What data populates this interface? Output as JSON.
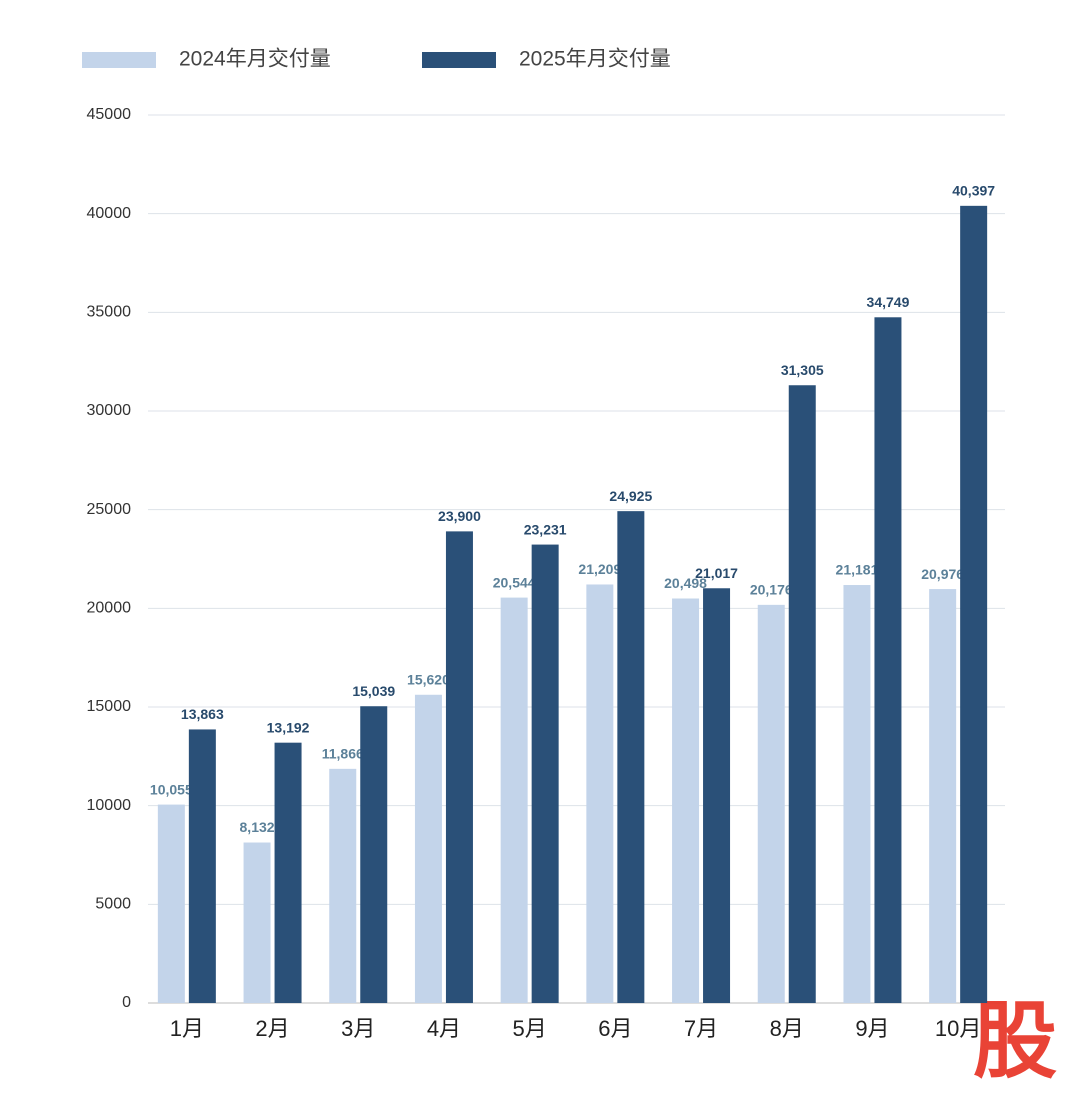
{
  "chart_data": {
    "type": "bar",
    "categories": [
      "1月",
      "2月",
      "3月",
      "4月",
      "5月",
      "6月",
      "7月",
      "8月",
      "9月",
      "10月"
    ],
    "series": [
      {
        "name": "2024年月交付量",
        "color": "#c3d4ea",
        "values": [
          10055,
          8132,
          11866,
          15620,
          20544,
          21209,
          20498,
          20176,
          21181,
          20976
        ],
        "value_labels": [
          "10,055",
          "8,132",
          "11,866",
          "15,620",
          "20,544",
          "21,209",
          "20,498",
          "20,176",
          "21,181",
          "20,976"
        ]
      },
      {
        "name": "2025年月交付量",
        "color": "#2a5078",
        "values": [
          13863,
          13192,
          15039,
          23900,
          23231,
          24925,
          21017,
          31305,
          34749,
          40397
        ],
        "value_labels": [
          "13,863",
          "13,192",
          "15,039",
          "23,900",
          "23,231",
          "24,925",
          "21,017",
          "31,305",
          "34,749",
          "40,397"
        ]
      }
    ],
    "ylim": [
      0,
      45000
    ],
    "yticks": [
      0,
      5000,
      10000,
      15000,
      20000,
      25000,
      30000,
      35000,
      40000,
      45000
    ],
    "grid": true,
    "legend": "top-left",
    "watermark": "股"
  }
}
